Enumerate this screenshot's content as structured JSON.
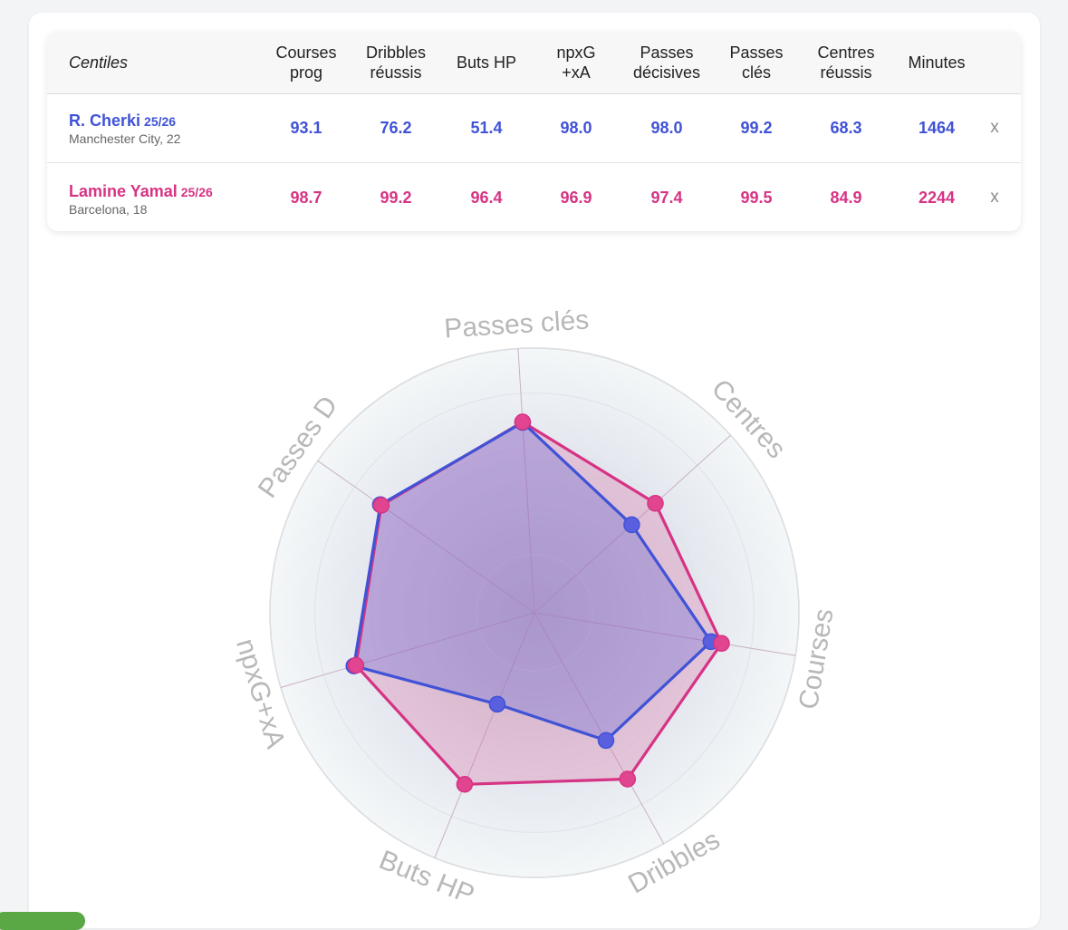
{
  "table": {
    "corner_label": "Centiles",
    "columns": [
      [
        "Courses",
        "prog"
      ],
      [
        "Dribbles",
        "réussis"
      ],
      [
        "Buts HP"
      ],
      [
        "npxG",
        "+xA"
      ],
      [
        "Passes",
        "décisives"
      ],
      [
        "Passes",
        "clés"
      ],
      [
        "Centres",
        "réussis"
      ],
      [
        "Minutes"
      ]
    ],
    "remove_label": "x",
    "players": [
      {
        "name": "R. Cherki",
        "season": "25/26",
        "club": "Manchester City, 22",
        "color": "#4052d6",
        "values": [
          "93.1",
          "76.2",
          "51.4",
          "98.0",
          "98.0",
          "99.2",
          "68.3",
          "1464"
        ]
      },
      {
        "name": "Lamine Yamal",
        "season": "25/26",
        "club": "Barcelona, 18",
        "color": "#d63384",
        "values": [
          "98.7",
          "99.2",
          "96.4",
          "96.9",
          "97.4",
          "99.5",
          "84.9",
          "2244"
        ]
      }
    ]
  },
  "chart_data": {
    "type": "radar",
    "range": [
      0,
      100
    ],
    "axes": [
      "Passes clés",
      "Centres",
      "Courses",
      "Dribbles",
      "Buts HP",
      "npxG+xA",
      "Passes D"
    ],
    "series": [
      {
        "name": "R. Cherki",
        "color": "#4052d6",
        "values": [
          99.2,
          68.3,
          93.1,
          76.2,
          51.4,
          98.0,
          98.0
        ]
      },
      {
        "name": "Lamine Yamal",
        "color": "#d63384",
        "values": [
          99.5,
          84.9,
          98.7,
          99.2,
          96.4,
          96.9,
          97.4
        ]
      }
    ]
  }
}
